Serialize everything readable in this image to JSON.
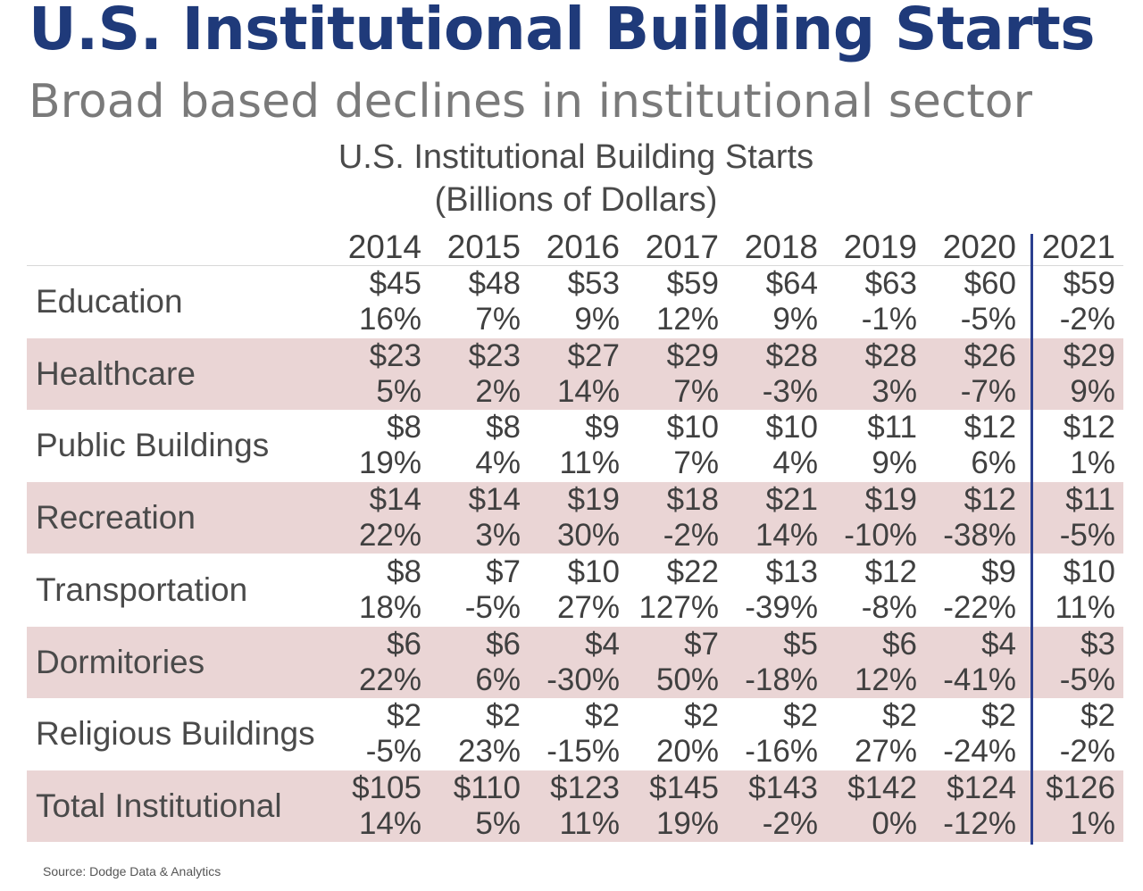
{
  "slide": {
    "title": "U.S. Institutional Building Starts",
    "subtitle": "Broad based declines in institutional sector",
    "source": "Source: Dodge Data & Analytics"
  },
  "chart_data": {
    "type": "table",
    "title": "U.S. Institutional Building Starts",
    "subtitle": "(Billions of Dollars)",
    "years": [
      "2014",
      "2015",
      "2016",
      "2017",
      "2018",
      "2019",
      "2020",
      "2021"
    ],
    "rows": [
      {
        "label": "Education",
        "values": [
          "$45",
          "$48",
          "$53",
          "$59",
          "$64",
          "$63",
          "$60",
          "$59"
        ],
        "changes": [
          "16%",
          "7%",
          "9%",
          "12%",
          "9%",
          "-1%",
          "-5%",
          "-2%"
        ]
      },
      {
        "label": "Healthcare",
        "values": [
          "$23",
          "$23",
          "$27",
          "$29",
          "$28",
          "$28",
          "$26",
          "$29"
        ],
        "changes": [
          "5%",
          "2%",
          "14%",
          "7%",
          "-3%",
          "3%",
          "-7%",
          "9%"
        ]
      },
      {
        "label": "Public Buildings",
        "values": [
          "$8",
          "$8",
          "$9",
          "$10",
          "$10",
          "$11",
          "$12",
          "$12"
        ],
        "changes": [
          "19%",
          "4%",
          "11%",
          "7%",
          "4%",
          "9%",
          "6%",
          "1%"
        ]
      },
      {
        "label": "Recreation",
        "values": [
          "$14",
          "$14",
          "$19",
          "$18",
          "$21",
          "$19",
          "$12",
          "$11"
        ],
        "changes": [
          "22%",
          "3%",
          "30%",
          "-2%",
          "14%",
          "-10%",
          "-38%",
          "-5%"
        ]
      },
      {
        "label": "Transportation",
        "values": [
          "$8",
          "$7",
          "$10",
          "$22",
          "$13",
          "$12",
          "$9",
          "$10"
        ],
        "changes": [
          "18%",
          "-5%",
          "27%",
          "127%",
          "-39%",
          "-8%",
          "-22%",
          "11%"
        ]
      },
      {
        "label": "Dormitories",
        "values": [
          "$6",
          "$6",
          "$4",
          "$7",
          "$5",
          "$6",
          "$4",
          "$3"
        ],
        "changes": [
          "22%",
          "6%",
          "-30%",
          "50%",
          "-18%",
          "12%",
          "-41%",
          "-5%"
        ]
      },
      {
        "label": "Religious Buildings",
        "values": [
          "$2",
          "$2",
          "$2",
          "$2",
          "$2",
          "$2",
          "$2",
          "$2"
        ],
        "changes": [
          "-5%",
          "23%",
          "-15%",
          "20%",
          "-16%",
          "27%",
          "-24%",
          "-2%"
        ]
      },
      {
        "label": "Total Institutional",
        "values": [
          "$105",
          "$110",
          "$123",
          "$145",
          "$143",
          "$142",
          "$124",
          "$126"
        ],
        "changes": [
          "14%",
          "5%",
          "11%",
          "19%",
          "-2%",
          "0%",
          "-12%",
          "1%"
        ]
      }
    ],
    "colors": {
      "title": "#1f3a7a",
      "row_shade": "#ead5d5",
      "divider": "#2b3f8f"
    }
  }
}
